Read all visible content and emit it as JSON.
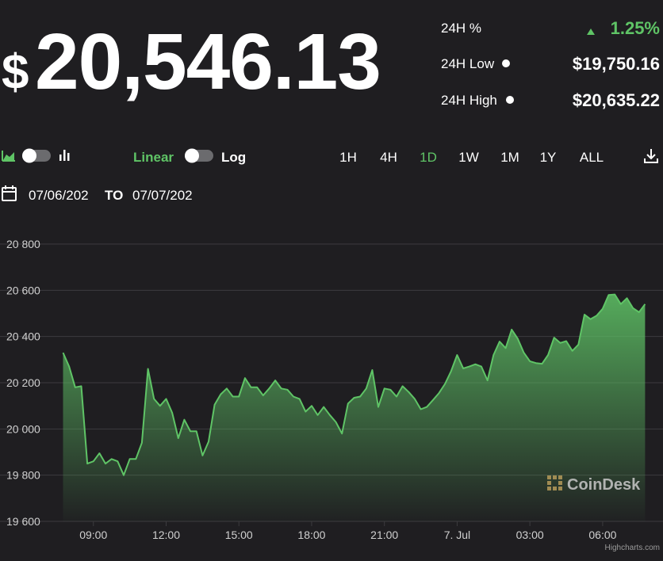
{
  "header": {
    "currency": "$",
    "price": "20,546.13",
    "stats": [
      {
        "label": "24H %",
        "value": "1.25%"
      },
      {
        "label": "24H Low",
        "value": "$19,750.16"
      },
      {
        "label": "24H High",
        "value": "$20,635.22"
      }
    ]
  },
  "toolbar": {
    "scale_options": [
      {
        "label": "Linear",
        "active": true
      },
      {
        "label": "Log",
        "active": false
      }
    ],
    "ranges": [
      {
        "label": "1H",
        "active": false
      },
      {
        "label": "4H",
        "active": false
      },
      {
        "label": "1D",
        "active": true
      },
      {
        "label": "1W",
        "active": false
      },
      {
        "label": "1M",
        "active": false
      },
      {
        "label": "1Y",
        "active": false
      },
      {
        "label": "ALL",
        "active": false
      }
    ],
    "date_from": "07/06/202",
    "date_separator": "TO",
    "date_to": "07/07/202"
  },
  "chart_data": {
    "type": "area",
    "color": "#5fc466",
    "grid": true,
    "watermark": "CoinDesk",
    "credits": "Highcharts.com",
    "xlim": [
      7.7,
      31.9
    ],
    "xticks": [
      {
        "value": 9,
        "label": "09:00"
      },
      {
        "value": 12,
        "label": "12:00"
      },
      {
        "value": 15,
        "label": "15:00"
      },
      {
        "value": 18,
        "label": "18:00"
      },
      {
        "value": 21,
        "label": "21:00"
      },
      {
        "value": 24,
        "label": "7. Jul"
      },
      {
        "value": 27,
        "label": "03:00"
      },
      {
        "value": 30,
        "label": "06:00"
      }
    ],
    "ylim": [
      19600,
      20800
    ],
    "yticks": [
      {
        "value": 19600,
        "label": "19 600"
      },
      {
        "value": 19800,
        "label": "19 800"
      },
      {
        "value": 20000,
        "label": "20 000"
      },
      {
        "value": 20200,
        "label": "20 200"
      },
      {
        "value": 20400,
        "label": "20 400"
      },
      {
        "value": 20600,
        "label": "20 600"
      },
      {
        "value": 20800,
        "label": "20 800"
      }
    ],
    "x": [
      7.75,
      8,
      8.25,
      8.5,
      8.75,
      9,
      9.25,
      9.5,
      9.75,
      10,
      10.25,
      10.5,
      10.75,
      11,
      11.25,
      11.5,
      11.75,
      12,
      12.25,
      12.5,
      12.75,
      13,
      13.25,
      13.5,
      13.75,
      14,
      14.25,
      14.5,
      14.75,
      15,
      15.25,
      15.5,
      15.75,
      16,
      16.25,
      16.5,
      16.75,
      17,
      17.25,
      17.5,
      17.75,
      18,
      18.25,
      18.5,
      18.75,
      19,
      19.25,
      19.5,
      19.75,
      20,
      20.25,
      20.5,
      20.75,
      21,
      21.25,
      21.5,
      21.75,
      22,
      22.25,
      22.5,
      22.75,
      23,
      23.25,
      23.5,
      23.75,
      24,
      24.25,
      24.5,
      24.75,
      25,
      25.25,
      25.5,
      25.75,
      26,
      26.25,
      26.5,
      26.75,
      27,
      27.25,
      27.5,
      27.75,
      28,
      28.25,
      28.5,
      28.75,
      29,
      29.25,
      29.5,
      29.75,
      30,
      30.25,
      30.5,
      30.75,
      31,
      31.25,
      31.5,
      31.75
    ],
    "values": [
      20330,
      20270,
      20180,
      20185,
      19850,
      19860,
      19895,
      19850,
      19870,
      19860,
      19800,
      19870,
      19870,
      19940,
      20260,
      20130,
      20100,
      20130,
      20070,
      19960,
      20040,
      19990,
      19990,
      19885,
      19945,
      20105,
      20150,
      20175,
      20140,
      20140,
      20220,
      20180,
      20180,
      20145,
      20175,
      20210,
      20175,
      20170,
      20140,
      20130,
      20075,
      20100,
      20060,
      20095,
      20060,
      20030,
      19980,
      20110,
      20135,
      20140,
      20175,
      20255,
      20095,
      20175,
      20170,
      20140,
      20185,
      20160,
      20130,
      20085,
      20095,
      20125,
      20155,
      20195,
      20250,
      20320,
      20262,
      20270,
      20280,
      20270,
      20210,
      20320,
      20378,
      20350,
      20430,
      20390,
      20330,
      20293,
      20285,
      20282,
      20320,
      20395,
      20372,
      20380,
      20338,
      20365,
      20495,
      20475,
      20490,
      20520,
      20580,
      20582,
      20540,
      20566,
      20523,
      20505,
      20540
    ]
  }
}
